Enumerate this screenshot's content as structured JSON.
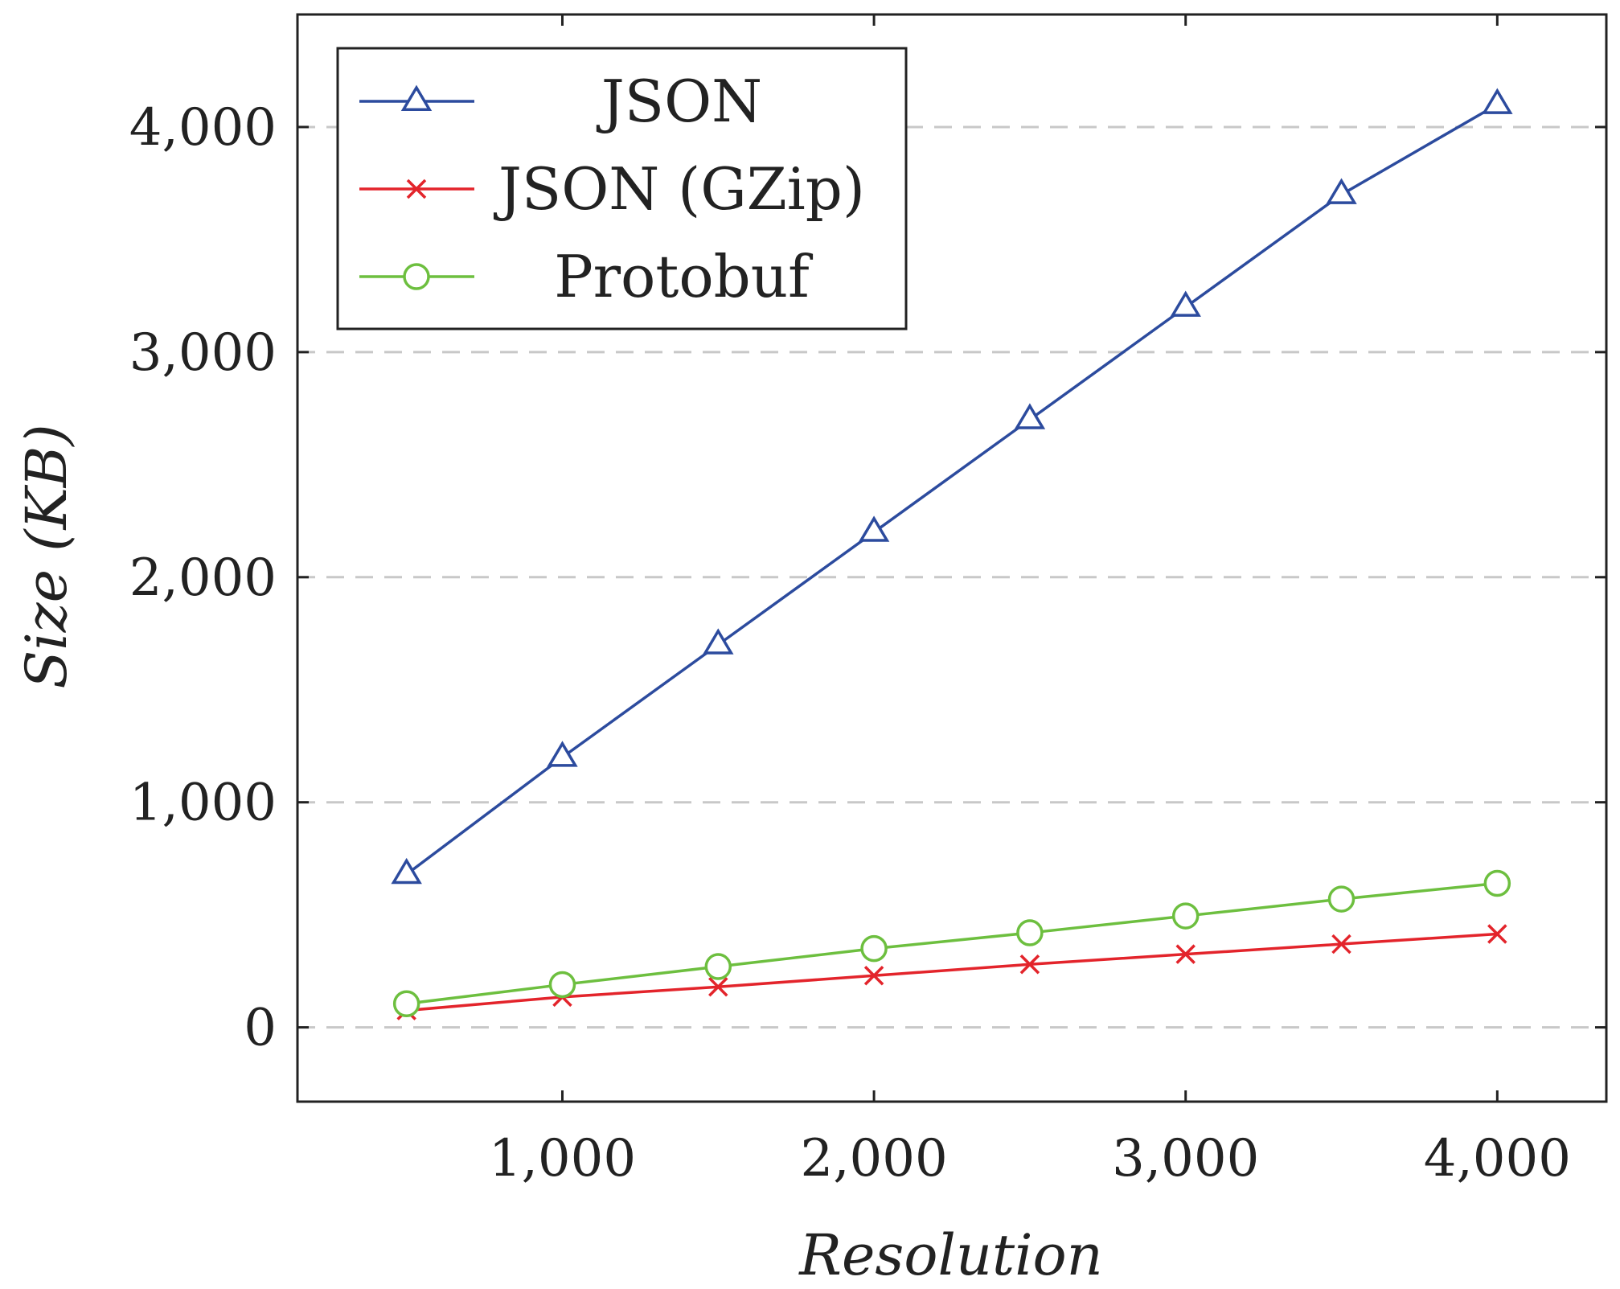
{
  "chart_data": {
    "type": "line",
    "xlabel": "Resolution",
    "ylabel": "Size (KB)",
    "xlim": [
      150,
      4350
    ],
    "ylim": [
      -330,
      4500
    ],
    "xticks": [
      1000,
      2000,
      3000,
      4000
    ],
    "xtick_labels": [
      "1,000",
      "2,000",
      "3,000",
      "4,000"
    ],
    "yticks": [
      0,
      1000,
      2000,
      3000,
      4000
    ],
    "ytick_labels": [
      "0",
      "1,000",
      "2,000",
      "3,000",
      "4,000"
    ],
    "grid": "horizontal-dashed",
    "legend_position": "top-left",
    "x": [
      500,
      1000,
      1500,
      2000,
      2500,
      3000,
      3500,
      4000
    ],
    "series": [
      {
        "name": "JSON",
        "marker": "triangle",
        "color": "#2c4b9e",
        "values": [
          680,
          1200,
          1700,
          2200,
          2700,
          3200,
          3700,
          4100
        ]
      },
      {
        "name": "JSON (GZip)",
        "marker": "cross",
        "color": "#e3242b",
        "values": [
          75,
          135,
          180,
          230,
          280,
          325,
          370,
          415
        ]
      },
      {
        "name": "Protobuf",
        "marker": "circle",
        "color": "#6dbf3f",
        "values": [
          105,
          190,
          270,
          350,
          420,
          495,
          570,
          640
        ]
      }
    ]
  }
}
